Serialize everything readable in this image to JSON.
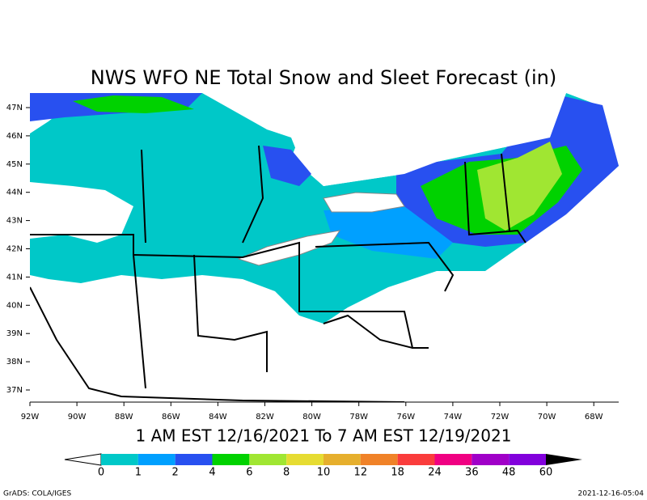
{
  "title": "NWS WFO NE Total Snow and Sleet Forecast (in)",
  "subtitle": "1 AM EST 12/16/2021 To 7 AM EST 12/19/2021",
  "lat_labels": [
    "47N",
    "46N",
    "45N",
    "44N",
    "43N",
    "42N",
    "41N",
    "40N",
    "39N",
    "38N",
    "37N"
  ],
  "lon_labels": [
    "92W",
    "90W",
    "88W",
    "86W",
    "84W",
    "82W",
    "80W",
    "78W",
    "76W",
    "74W",
    "72W",
    "70W",
    "68W"
  ],
  "legend": {
    "levels": [
      "0",
      "1",
      "2",
      "4",
      "6",
      "8",
      "10",
      "12",
      "18",
      "24",
      "36",
      "48",
      "60"
    ],
    "colors": [
      "#00c8c8",
      "#00a0ff",
      "#2850f0",
      "#00d200",
      "#a0e632",
      "#e6dc32",
      "#e6af2d",
      "#f08228",
      "#fa3c3c",
      "#f00082",
      "#a000c8",
      "#8200dc"
    ],
    "below_color": "#ffffff",
    "above_color": "#000000"
  },
  "footer_left": "GrADS: COLA/IGES",
  "footer_right": "2021-12-16-05:04"
}
